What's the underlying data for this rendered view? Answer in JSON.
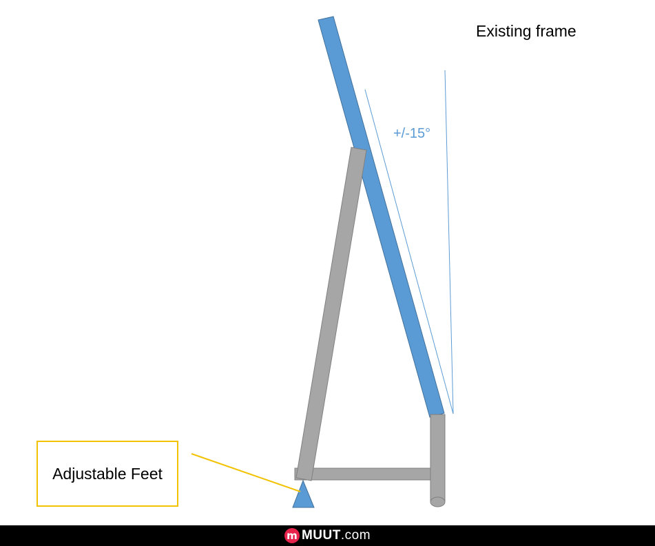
{
  "labels": {
    "existing_frame": "Existing frame",
    "angle": "+/-15°",
    "adjustable_feet": "Adjustable Feet"
  },
  "footer": {
    "logo_letter": "m",
    "brand_name": "MUUT",
    "brand_domain": ".com"
  },
  "colors": {
    "frame_blue": "#5b9bd5",
    "frame_blue_stroke": "#41719c",
    "steel_gray": "#a6a6a6",
    "steel_gray_stroke": "#7f7f7f",
    "callout_yellow": "#f2c200",
    "brand_red": "#e8244c"
  }
}
